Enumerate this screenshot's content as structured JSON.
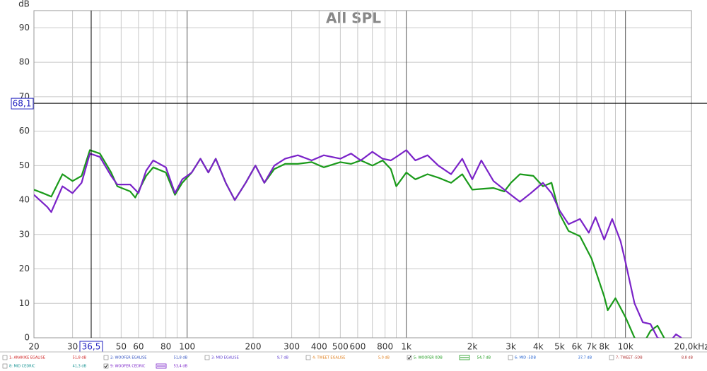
{
  "chart_data": {
    "type": "line",
    "title": "All SPL",
    "y_label": "dB",
    "log_x": true,
    "grid": true,
    "xlim": [
      20,
      20000
    ],
    "ylim": [
      0,
      95
    ],
    "xticks": [
      20,
      30,
      50,
      60,
      80,
      100,
      200,
      300,
      400,
      500,
      600,
      800,
      {
        "value": 1000,
        "label": "1k"
      },
      {
        "value": 2000,
        "label": "2k"
      },
      {
        "value": 3000,
        "label": "3k"
      },
      {
        "value": 4000,
        "label": "4k"
      },
      {
        "value": 5000,
        "label": "5k"
      },
      {
        "value": 6000,
        "label": "6k"
      },
      {
        "value": 7000,
        "label": "7k"
      },
      {
        "value": 8000,
        "label": "8k"
      },
      {
        "value": 10000,
        "label": "10k"
      },
      {
        "value": 20000,
        "label": "20,0kHz"
      }
    ],
    "xgrid_minor": [
      40,
      70,
      90,
      700,
      900,
      9000
    ],
    "yticks": [
      0,
      10,
      20,
      30,
      40,
      50,
      60,
      70,
      80,
      90
    ],
    "cursor": {
      "x": {
        "value": 36.5,
        "label": "36,5"
      },
      "y": {
        "value": 68.1,
        "label": "68,1"
      }
    },
    "series": [
      {
        "name": "5: WOOFER 0DB",
        "color": "#1a9a1a",
        "x": [
          20,
          22,
          24,
          27,
          30,
          33,
          36,
          40,
          45,
          48,
          55,
          58,
          65,
          70,
          80,
          88,
          95,
          105,
          115,
          125,
          135,
          150,
          165,
          185,
          205,
          225,
          250,
          280,
          320,
          370,
          420,
          500,
          560,
          620,
          700,
          780,
          850,
          900,
          1000,
          1100,
          1250,
          1400,
          1600,
          1800,
          2000,
          2500,
          2800,
          3000,
          3300,
          3800,
          4200,
          4600,
          5000,
          5500,
          6200,
          7000,
          8000,
          8300,
          9000,
          10000,
          11000,
          12000,
          13000,
          14000,
          15000,
          16000
        ],
        "values": [
          43,
          42,
          41,
          47.5,
          45.5,
          47,
          54.5,
          53.5,
          48,
          44,
          42.5,
          40.7,
          47,
          49.5,
          48,
          41.5,
          45,
          48,
          52,
          48,
          52,
          45,
          40,
          45,
          50,
          45,
          49,
          50.5,
          50.5,
          51,
          49.5,
          51,
          50.5,
          51.5,
          50,
          51.5,
          49,
          44,
          48,
          46,
          47.5,
          46.5,
          45,
          47.5,
          43,
          43.5,
          42.5,
          45,
          47.5,
          47,
          44,
          45,
          36,
          31,
          29.5,
          23,
          12,
          8,
          11.5,
          6,
          0,
          -2,
          2,
          3.5,
          0,
          -3
        ]
      },
      {
        "name": "9: WOOFER CEDRIC",
        "color": "#7a22c8",
        "x": [
          20,
          23,
          24,
          27,
          30,
          33,
          36,
          40,
          45,
          48,
          55,
          60,
          65,
          70,
          80,
          88,
          95,
          105,
          115,
          125,
          135,
          150,
          165,
          185,
          205,
          225,
          250,
          280,
          320,
          370,
          420,
          500,
          560,
          620,
          700,
          780,
          850,
          900,
          1000,
          1100,
          1250,
          1400,
          1600,
          1800,
          2000,
          2200,
          2500,
          2800,
          3000,
          3300,
          3700,
          4200,
          4600,
          5000,
          5500,
          6200,
          6800,
          7300,
          8000,
          8700,
          9500,
          10000,
          11000,
          12000,
          13000,
          14000,
          16000,
          17000,
          18000
        ],
        "values": [
          41.5,
          38,
          36.5,
          44,
          42,
          45,
          53.5,
          52.5,
          47,
          44.5,
          44.5,
          42,
          48.5,
          51.5,
          49.5,
          42,
          46,
          48,
          52,
          48,
          52,
          45,
          40,
          45,
          50,
          45,
          50,
          52,
          53,
          51.5,
          53,
          52,
          53.5,
          51.5,
          54,
          52,
          51.5,
          52.5,
          54.5,
          51.5,
          53,
          50,
          47.5,
          52,
          46,
          51.5,
          45.5,
          43,
          41.5,
          39.5,
          42,
          45,
          42,
          37,
          33,
          34.5,
          30.5,
          35,
          28.5,
          34.5,
          28,
          22,
          10,
          4.5,
          4,
          0,
          -1,
          1,
          0
        ]
      }
    ],
    "legend": [
      [
        {
          "name": "1: ANAKIKE EGALISE",
          "reading": "51,8 dB",
          "color": "#d02020",
          "checked": false
        },
        {
          "name": "2: WOOFER EGALISE",
          "reading": "51,8 dB",
          "color": "#3050c0",
          "checked": false
        },
        {
          "name": "3: MID EGALISE",
          "reading": "9,7 dB",
          "color": "#6040d0",
          "checked": false
        },
        {
          "name": "4: TWEET EGALISE",
          "reading": "5,0 dB",
          "color": "#e08020",
          "checked": false
        },
        {
          "name": "5: WOOFER 0DB",
          "reading": "54,7 dB",
          "color": "#1a9a1a",
          "checked": true
        },
        {
          "name": "6: MID -5DB",
          "reading": "37,7 dB",
          "color": "#2060d0",
          "checked": false
        },
        {
          "name": "7: TWEET -5DB",
          "reading": "8,8 dB",
          "color": "#b03030",
          "checked": false
        }
      ],
      [
        {
          "name": "8: MID CEDRIC",
          "reading": "41,3 dB",
          "color": "#109090",
          "checked": false
        },
        {
          "name": "9: WOOFER CEDRIC",
          "reading": "53,4 dB",
          "color": "#7a22c8",
          "checked": true
        }
      ]
    ]
  }
}
